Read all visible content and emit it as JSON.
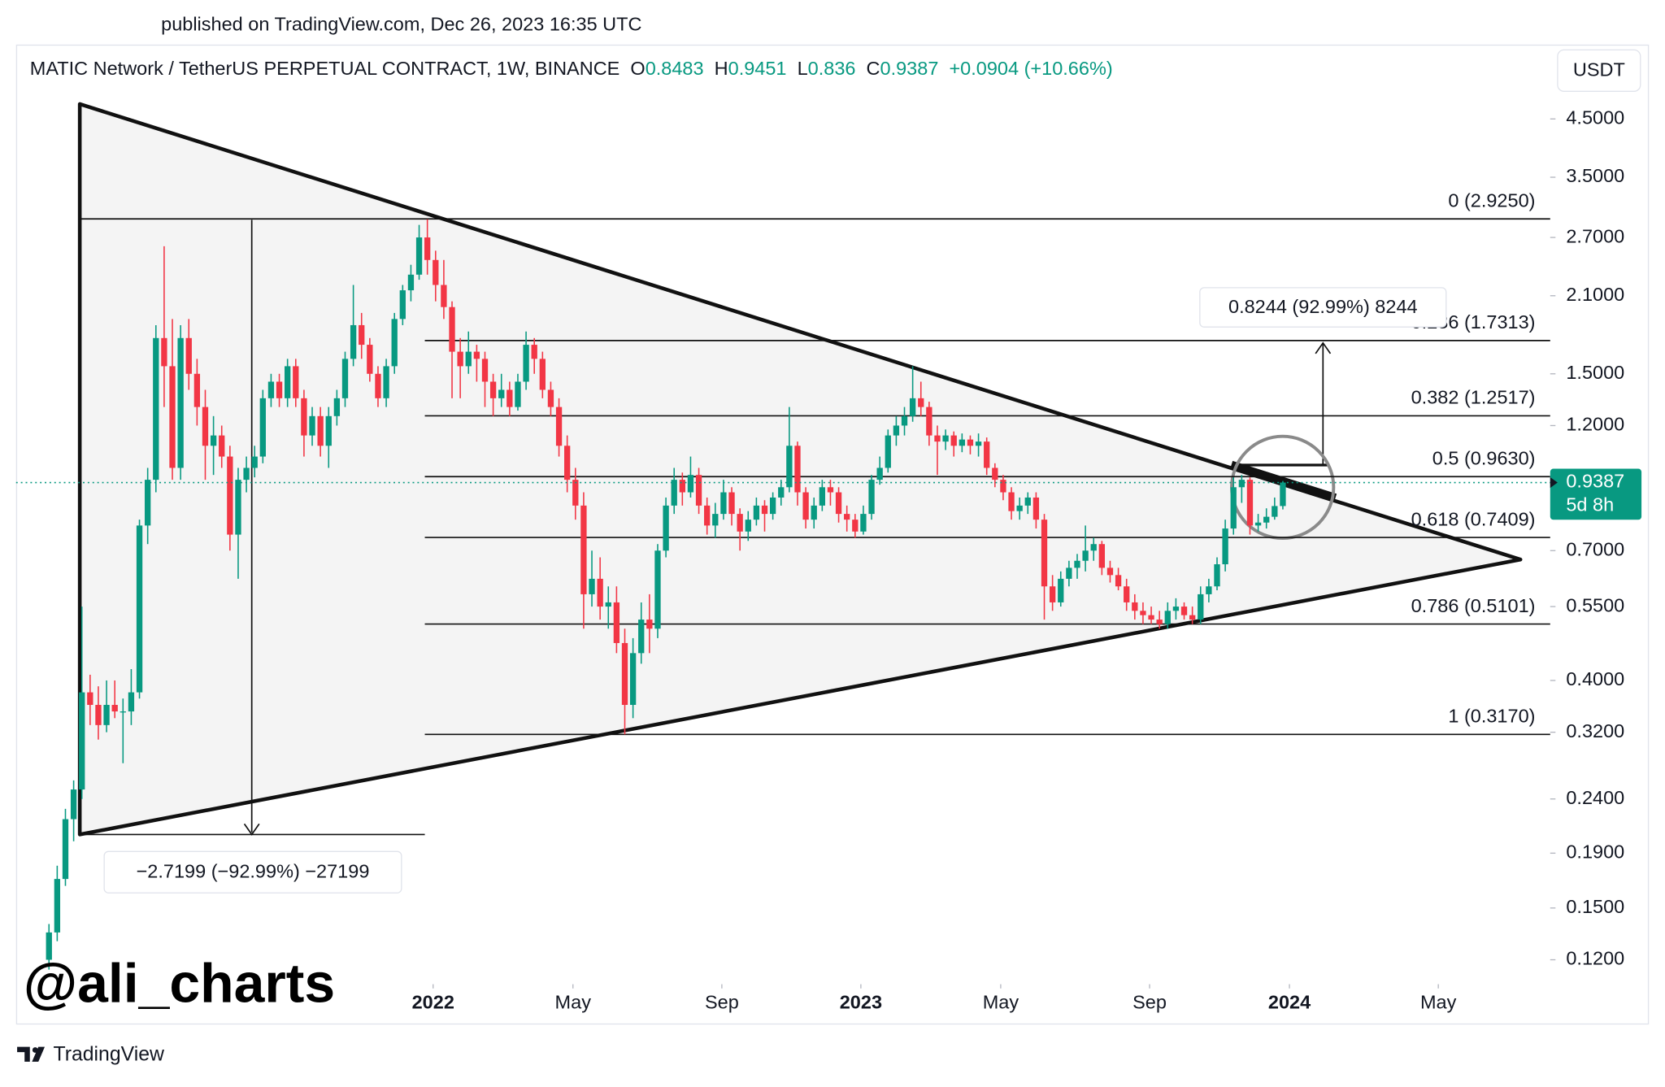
{
  "chart_data": {
    "type": "candlestick",
    "published": "published on TradingView.com, Dec 26, 2023 16:35 UTC",
    "title": "MATIC Network / TetherUS PERPETUAL CONTRACT, 1W, BINANCE",
    "legend_labels": [
      "O",
      "H",
      "L",
      "C"
    ],
    "change": "+0.0904 (+10.66%)",
    "currency": "USDT",
    "countdown": "5d 8h",
    "watermark": "@ali_charts",
    "brand": "TradingView",
    "up_color": "#089981",
    "down_color": "#f23645",
    "log_scale": true,
    "grid": false,
    "ylim": [
      0.109,
      6.2
    ],
    "yticks": [
      {
        "value": 4.5,
        "label": "4.5000"
      },
      {
        "value": 3.5,
        "label": "3.5000"
      },
      {
        "value": 2.7,
        "label": "2.7000"
      },
      {
        "value": 2.1,
        "label": "2.1000"
      },
      {
        "value": 1.5,
        "label": "1.5000"
      },
      {
        "value": 1.2,
        "label": "1.2000"
      },
      {
        "value": 0.7,
        "label": "0.7000"
      },
      {
        "value": 0.55,
        "label": "0.5500"
      },
      {
        "value": 0.4,
        "label": "0.4000"
      },
      {
        "value": 0.32,
        "label": "0.3200"
      },
      {
        "value": 0.24,
        "label": "0.2400"
      },
      {
        "value": 0.19,
        "label": "0.1900"
      },
      {
        "value": 0.15,
        "label": "0.1500"
      },
      {
        "value": 0.12,
        "label": "0.1200"
      }
    ],
    "xlim": [
      -4,
      182.5
    ],
    "xticks": [
      {
        "value": 46.7,
        "label": "2022"
      },
      {
        "value": 63.7,
        "label": "May"
      },
      {
        "value": 81.8,
        "label": "Sep"
      },
      {
        "value": 98.7,
        "label": "2023"
      },
      {
        "value": 115.7,
        "label": "May"
      },
      {
        "value": 133.8,
        "label": "Sep"
      },
      {
        "value": 150.8,
        "label": "2024"
      },
      {
        "value": 168.9,
        "label": "May"
      }
    ],
    "fib_levels": [
      {
        "label": "0 (2.9250)",
        "value": 2.925
      },
      {
        "label": "0.236 (1.7313)",
        "value": 1.7313
      },
      {
        "label": "0.382 (1.2517)",
        "value": 1.2517
      },
      {
        "label": "0.5 (0.9630)",
        "value": 0.963
      },
      {
        "label": "0.618 (0.7409)",
        "value": 0.7409
      },
      {
        "label": "0.786 (0.5101)",
        "value": 0.5101
      },
      {
        "label": "1 (0.3170)",
        "value": 0.317
      }
    ],
    "measure_up": "0.8244 (92.99%) 8244",
    "measure_down": "−2.7199 (−92.99%) −27199",
    "candles": [
      [
        0.12,
        0.14,
        0.115,
        0.135
      ],
      [
        0.135,
        0.18,
        0.13,
        0.17
      ],
      [
        0.17,
        0.23,
        0.165,
        0.22
      ],
      [
        0.22,
        0.26,
        0.2,
        0.25
      ],
      [
        0.25,
        0.55,
        0.24,
        0.38
      ],
      [
        0.38,
        0.41,
        0.33,
        0.36
      ],
      [
        0.36,
        0.39,
        0.31,
        0.33
      ],
      [
        0.33,
        0.4,
        0.32,
        0.36
      ],
      [
        0.36,
        0.4,
        0.34,
        0.35
      ],
      [
        0.35,
        0.37,
        0.28,
        0.35
      ],
      [
        0.35,
        0.42,
        0.33,
        0.38
      ],
      [
        0.38,
        0.8,
        0.37,
        0.78
      ],
      [
        0.78,
        1.0,
        0.72,
        0.95
      ],
      [
        0.95,
        1.85,
        0.9,
        1.75
      ],
      [
        1.75,
        2.6,
        1.3,
        1.55
      ],
      [
        1.55,
        1.9,
        0.95,
        1.0
      ],
      [
        1.0,
        1.85,
        0.95,
        1.75
      ],
      [
        1.75,
        1.9,
        1.4,
        1.5
      ],
      [
        1.5,
        1.6,
        1.2,
        1.3
      ],
      [
        1.3,
        1.4,
        0.95,
        1.1
      ],
      [
        1.1,
        1.25,
        0.97,
        1.15
      ],
      [
        1.15,
        1.2,
        1.0,
        1.05
      ],
      [
        1.05,
        1.1,
        0.7,
        0.75
      ],
      [
        0.75,
        1.0,
        0.62,
        0.95
      ],
      [
        0.95,
        1.05,
        0.9,
        1.0
      ],
      [
        1.0,
        1.1,
        0.96,
        1.05
      ],
      [
        1.05,
        1.4,
        1.02,
        1.35
      ],
      [
        1.35,
        1.5,
        1.3,
        1.45
      ],
      [
        1.45,
        1.5,
        1.3,
        1.35
      ],
      [
        1.35,
        1.6,
        1.3,
        1.55
      ],
      [
        1.55,
        1.6,
        1.3,
        1.35
      ],
      [
        1.35,
        1.4,
        1.05,
        1.15
      ],
      [
        1.15,
        1.3,
        1.1,
        1.25
      ],
      [
        1.25,
        1.3,
        1.05,
        1.1
      ],
      [
        1.1,
        1.3,
        1.0,
        1.25
      ],
      [
        1.25,
        1.4,
        1.2,
        1.35
      ],
      [
        1.35,
        1.65,
        1.3,
        1.6
      ],
      [
        1.6,
        2.2,
        1.55,
        1.85
      ],
      [
        1.85,
        1.95,
        1.6,
        1.7
      ],
      [
        1.7,
        1.75,
        1.45,
        1.5
      ],
      [
        1.5,
        1.55,
        1.3,
        1.35
      ],
      [
        1.35,
        1.6,
        1.3,
        1.55
      ],
      [
        1.55,
        1.95,
        1.5,
        1.9
      ],
      [
        1.9,
        2.2,
        1.85,
        2.15
      ],
      [
        2.15,
        2.4,
        2.05,
        2.3
      ],
      [
        2.3,
        2.85,
        2.25,
        2.7
      ],
      [
        2.7,
        2.92,
        2.3,
        2.45
      ],
      [
        2.45,
        2.55,
        2.05,
        2.2
      ],
      [
        2.2,
        2.45,
        1.9,
        2.0
      ],
      [
        2.0,
        2.05,
        1.35,
        1.65
      ],
      [
        1.65,
        1.75,
        1.35,
        1.55
      ],
      [
        1.55,
        1.8,
        1.5,
        1.65
      ],
      [
        1.65,
        1.7,
        1.45,
        1.6
      ],
      [
        1.6,
        1.65,
        1.3,
        1.45
      ],
      [
        1.45,
        1.5,
        1.25,
        1.35
      ],
      [
        1.35,
        1.5,
        1.3,
        1.4
      ],
      [
        1.4,
        1.45,
        1.25,
        1.3
      ],
      [
        1.3,
        1.5,
        1.28,
        1.45
      ],
      [
        1.45,
        1.8,
        1.4,
        1.7
      ],
      [
        1.7,
        1.75,
        1.5,
        1.6
      ],
      [
        1.6,
        1.65,
        1.35,
        1.4
      ],
      [
        1.4,
        1.45,
        1.25,
        1.3
      ],
      [
        1.3,
        1.35,
        1.05,
        1.1
      ],
      [
        1.1,
        1.15,
        0.9,
        0.95
      ],
      [
        0.95,
        1.0,
        0.8,
        0.85
      ],
      [
        0.85,
        0.9,
        0.5,
        0.58
      ],
      [
        0.58,
        0.7,
        0.55,
        0.62
      ],
      [
        0.62,
        0.68,
        0.52,
        0.55
      ],
      [
        0.55,
        0.6,
        0.5,
        0.56
      ],
      [
        0.56,
        0.6,
        0.45,
        0.47
      ],
      [
        0.47,
        0.5,
        0.317,
        0.36
      ],
      [
        0.36,
        0.48,
        0.34,
        0.45
      ],
      [
        0.45,
        0.56,
        0.43,
        0.52
      ],
      [
        0.52,
        0.58,
        0.45,
        0.5
      ],
      [
        0.5,
        0.72,
        0.48,
        0.7
      ],
      [
        0.7,
        0.88,
        0.68,
        0.85
      ],
      [
        0.85,
        1.0,
        0.82,
        0.95
      ],
      [
        0.95,
        0.98,
        0.85,
        0.9
      ],
      [
        0.9,
        1.05,
        0.88,
        0.97
      ],
      [
        0.97,
        1.0,
        0.82,
        0.85
      ],
      [
        0.85,
        0.88,
        0.75,
        0.78
      ],
      [
        0.78,
        0.86,
        0.74,
        0.82
      ],
      [
        0.82,
        0.95,
        0.8,
        0.9
      ],
      [
        0.9,
        0.92,
        0.78,
        0.82
      ],
      [
        0.82,
        0.84,
        0.7,
        0.76
      ],
      [
        0.76,
        0.83,
        0.73,
        0.8
      ],
      [
        0.8,
        0.88,
        0.78,
        0.85
      ],
      [
        0.85,
        0.87,
        0.76,
        0.82
      ],
      [
        0.82,
        0.9,
        0.8,
        0.88
      ],
      [
        0.88,
        0.95,
        0.85,
        0.92
      ],
      [
        0.92,
        1.3,
        0.9,
        1.1
      ],
      [
        1.1,
        1.12,
        0.85,
        0.9
      ],
      [
        0.9,
        0.92,
        0.77,
        0.8
      ],
      [
        0.8,
        0.88,
        0.77,
        0.85
      ],
      [
        0.85,
        0.95,
        0.83,
        0.92
      ],
      [
        0.92,
        0.95,
        0.85,
        0.9
      ],
      [
        0.9,
        0.92,
        0.79,
        0.82
      ],
      [
        0.82,
        0.85,
        0.76,
        0.8
      ],
      [
        0.8,
        0.82,
        0.74,
        0.76
      ],
      [
        0.76,
        0.85,
        0.75,
        0.82
      ],
      [
        0.82,
        0.97,
        0.8,
        0.95
      ],
      [
        0.95,
        1.05,
        0.93,
        1.0
      ],
      [
        1.0,
        1.18,
        0.98,
        1.15
      ],
      [
        1.15,
        1.25,
        1.1,
        1.2
      ],
      [
        1.2,
        1.3,
        1.15,
        1.25
      ],
      [
        1.25,
        1.55,
        1.22,
        1.35
      ],
      [
        1.35,
        1.45,
        1.25,
        1.3
      ],
      [
        1.3,
        1.33,
        1.1,
        1.15
      ],
      [
        1.15,
        1.2,
        0.97,
        1.12
      ],
      [
        1.12,
        1.18,
        1.08,
        1.15
      ],
      [
        1.15,
        1.17,
        1.05,
        1.1
      ],
      [
        1.1,
        1.16,
        1.07,
        1.13
      ],
      [
        1.13,
        1.15,
        1.06,
        1.1
      ],
      [
        1.1,
        1.16,
        1.05,
        1.12
      ],
      [
        1.12,
        1.14,
        0.97,
        1.0
      ],
      [
        1.0,
        1.02,
        0.92,
        0.95
      ],
      [
        0.95,
        0.97,
        0.87,
        0.9
      ],
      [
        0.9,
        0.92,
        0.8,
        0.83
      ],
      [
        0.83,
        0.88,
        0.8,
        0.85
      ],
      [
        0.85,
        0.9,
        0.82,
        0.88
      ],
      [
        0.88,
        0.9,
        0.77,
        0.8
      ],
      [
        0.8,
        0.82,
        0.52,
        0.6
      ],
      [
        0.6,
        0.63,
        0.54,
        0.56
      ],
      [
        0.56,
        0.64,
        0.55,
        0.62
      ],
      [
        0.62,
        0.67,
        0.6,
        0.65
      ],
      [
        0.65,
        0.69,
        0.62,
        0.67
      ],
      [
        0.67,
        0.78,
        0.64,
        0.7
      ],
      [
        0.7,
        0.74,
        0.67,
        0.72
      ],
      [
        0.72,
        0.73,
        0.63,
        0.65
      ],
      [
        0.65,
        0.67,
        0.61,
        0.63
      ],
      [
        0.63,
        0.65,
        0.59,
        0.6
      ],
      [
        0.6,
        0.62,
        0.54,
        0.56
      ],
      [
        0.56,
        0.58,
        0.52,
        0.54
      ],
      [
        0.54,
        0.56,
        0.51,
        0.53
      ],
      [
        0.53,
        0.55,
        0.51,
        0.52
      ],
      [
        0.52,
        0.54,
        0.5,
        0.51
      ],
      [
        0.51,
        0.56,
        0.5,
        0.54
      ],
      [
        0.54,
        0.57,
        0.52,
        0.55
      ],
      [
        0.55,
        0.56,
        0.52,
        0.53
      ],
      [
        0.53,
        0.55,
        0.51,
        0.52
      ],
      [
        0.52,
        0.6,
        0.51,
        0.58
      ],
      [
        0.58,
        0.62,
        0.56,
        0.6
      ],
      [
        0.6,
        0.68,
        0.59,
        0.66
      ],
      [
        0.66,
        0.8,
        0.64,
        0.77
      ],
      [
        0.77,
        0.96,
        0.75,
        0.92
      ],
      [
        0.92,
        0.97,
        0.86,
        0.95
      ],
      [
        0.95,
        0.96,
        0.75,
        0.78
      ],
      [
        0.78,
        0.82,
        0.76,
        0.79
      ],
      [
        0.79,
        0.84,
        0.77,
        0.81
      ],
      [
        0.81,
        0.88,
        0.8,
        0.8483
      ],
      [
        0.8483,
        0.9451,
        0.836,
        0.9387
      ]
    ]
  }
}
